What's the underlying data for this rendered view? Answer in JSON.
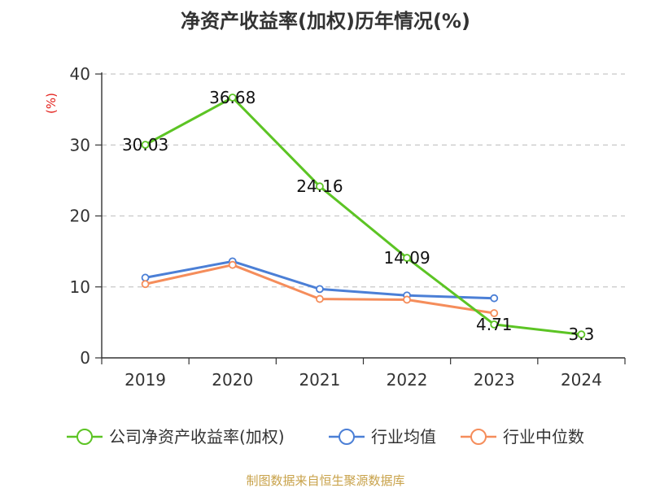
{
  "chart_data": {
    "type": "line",
    "title": "净资产收益率(加权)历年情况(%)",
    "ylabel": "(%)",
    "categories": [
      "2019",
      "2020",
      "2021",
      "2022",
      "2023",
      "2024"
    ],
    "ylim": [
      0,
      40
    ],
    "yticks": [
      "0",
      "10",
      "20",
      "30",
      "40"
    ],
    "grid": true,
    "legend_position": "bottom",
    "series": [
      {
        "name": "公司净资产收益率(加权)",
        "color": "#5cc424",
        "values": [
          30.03,
          36.68,
          24.16,
          14.09,
          4.71,
          3.3
        ],
        "labels": [
          "30.03",
          "36.68",
          "24.16",
          "14.09",
          "4.71",
          "3.3"
        ]
      },
      {
        "name": "行业均值",
        "color": "#4b7fd6",
        "values": [
          11.3,
          13.6,
          9.7,
          8.8,
          8.4,
          null
        ]
      },
      {
        "name": "行业中位数",
        "color": "#f58d5b",
        "values": [
          10.4,
          13.1,
          8.3,
          8.2,
          6.3,
          null
        ]
      }
    ]
  },
  "source": "制图数据来自恒生聚源数据库"
}
